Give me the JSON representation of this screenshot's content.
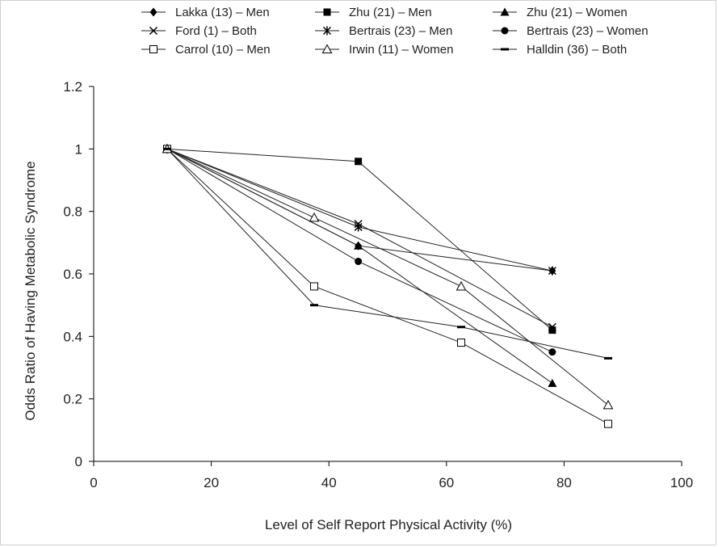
{
  "chart_data": {
    "type": "line",
    "xlabel": "Level of Self Report Physical Activity (%)",
    "ylabel": "Odds Ratio of Having Metabolic Syndrome",
    "xlim": [
      0,
      100
    ],
    "ylim": [
      0,
      1.2
    ],
    "x_ticks": [
      "0",
      "20",
      "40",
      "60",
      "80",
      "100"
    ],
    "y_ticks": [
      "0",
      "0.2",
      "0.4",
      "0.6",
      "0.8",
      "1",
      "1.2"
    ],
    "grid": false,
    "legend_position": "top",
    "series": [
      {
        "name": "Lakka (13) – Men",
        "marker": "diamond",
        "points": [
          [
            12.5,
            1.0
          ],
          [
            45,
            0.69
          ],
          [
            78,
            0.61
          ]
        ]
      },
      {
        "name": "Zhu (21) – Men",
        "marker": "square",
        "points": [
          [
            12.5,
            1.0
          ],
          [
            45,
            0.96
          ],
          [
            78,
            0.42
          ]
        ]
      },
      {
        "name": "Zhu (21) – Women",
        "marker": "triangle",
        "points": [
          [
            12.5,
            1.0
          ],
          [
            45,
            0.69
          ],
          [
            78,
            0.25
          ]
        ]
      },
      {
        "name": "Ford (1) – Both",
        "marker": "x",
        "points": [
          [
            12.5,
            1.0
          ],
          [
            45,
            0.76
          ],
          [
            78,
            0.43
          ]
        ]
      },
      {
        "name": "Bertrais (23) – Men",
        "marker": "star",
        "points": [
          [
            12.5,
            1.0
          ],
          [
            45,
            0.75
          ],
          [
            78,
            0.61
          ]
        ]
      },
      {
        "name": "Bertrais (23) – Women",
        "marker": "circle",
        "points": [
          [
            12.5,
            1.0
          ],
          [
            45,
            0.64
          ],
          [
            78,
            0.35
          ]
        ]
      },
      {
        "name": "Carrol (10) – Men",
        "marker": "open-square",
        "points": [
          [
            12.5,
            1.0
          ],
          [
            37.5,
            0.56
          ],
          [
            62.5,
            0.38
          ],
          [
            87.5,
            0.12
          ]
        ]
      },
      {
        "name": "Irwin (11) – Women",
        "marker": "open-triangle",
        "points": [
          [
            12.5,
            1.0
          ],
          [
            37.5,
            0.78
          ],
          [
            62.5,
            0.56
          ],
          [
            87.5,
            0.18
          ]
        ]
      },
      {
        "name": "Halldin (36) – Both",
        "marker": "dash",
        "points": [
          [
            12.5,
            1.0
          ],
          [
            37.5,
            0.5
          ],
          [
            62.5,
            0.43
          ],
          [
            87.5,
            0.33
          ]
        ]
      }
    ]
  }
}
